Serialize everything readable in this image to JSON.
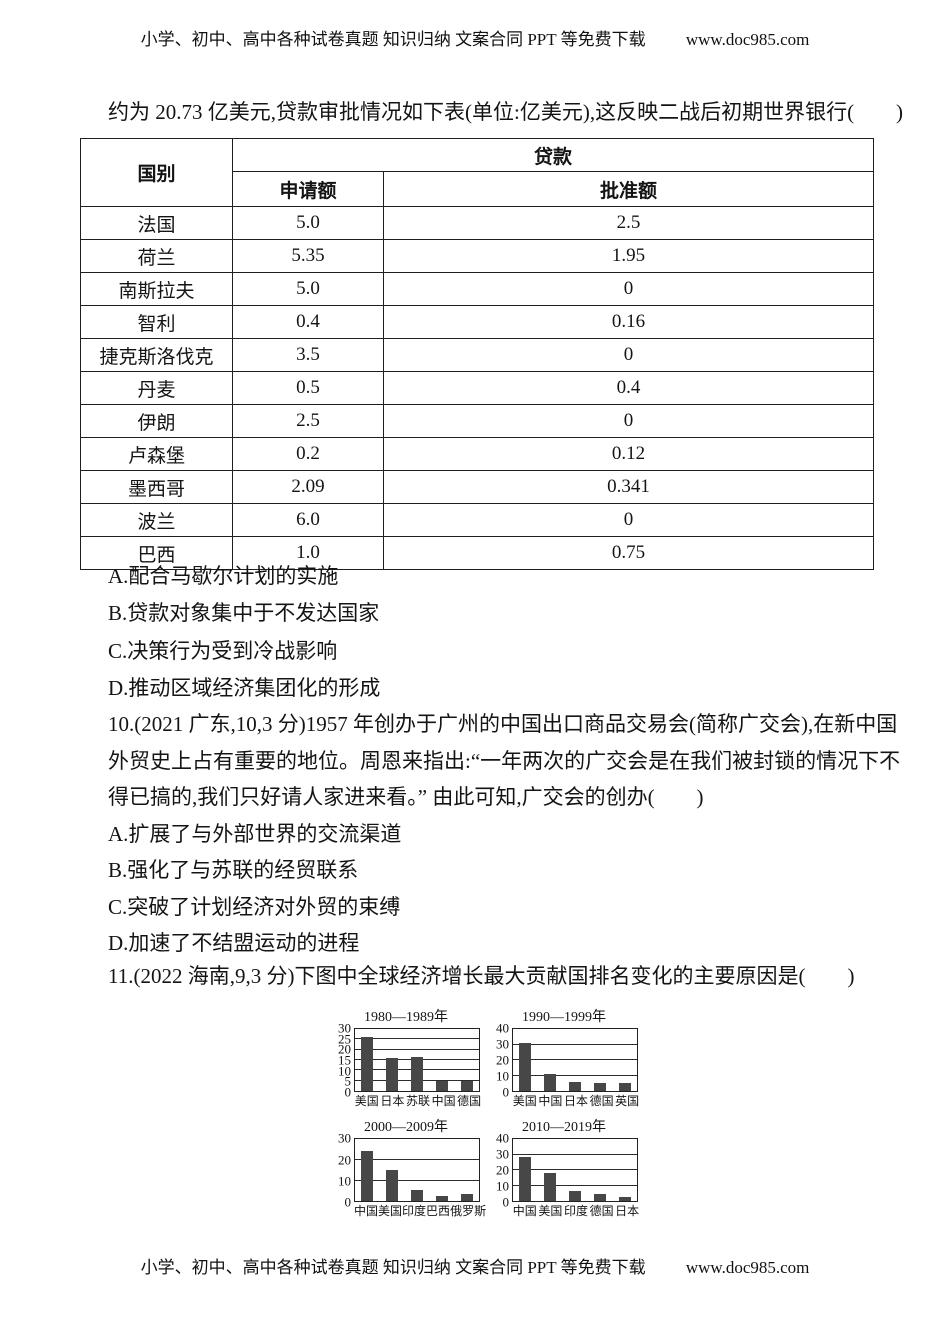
{
  "header": {
    "text": "小学、初中、高中各种试卷真题 知识归纳 文案合同 PPT 等免费下载",
    "url": "www.doc985.com"
  },
  "footer": {
    "text": "小学、初中、高中各种试卷真题 知识归纳 文案合同 PPT 等免费下载",
    "url": "www.doc985.com"
  },
  "intro": "约为 20.73 亿美元,贷款审批情况如下表(单位:亿美元),这反映二战后初期世界银行(　　)",
  "loan_table": {
    "country_header": "国别",
    "loan_header": "贷款",
    "applied_header": "申请额",
    "approved_header": "批准额",
    "rows": [
      {
        "country": "法国",
        "applied": "5.0",
        "approved": "2.5"
      },
      {
        "country": "荷兰",
        "applied": "5.35",
        "approved": "1.95"
      },
      {
        "country": "南斯拉夫",
        "applied": "5.0",
        "approved": "0"
      },
      {
        "country": "智利",
        "applied": "0.4",
        "approved": "0.16"
      },
      {
        "country": "捷克斯洛伐克",
        "applied": "3.5",
        "approved": "0"
      },
      {
        "country": "丹麦",
        "applied": "0.5",
        "approved": "0.4"
      },
      {
        "country": "伊朗",
        "applied": "2.5",
        "approved": "0"
      },
      {
        "country": "卢森堡",
        "applied": "0.2",
        "approved": "0.12"
      },
      {
        "country": "墨西哥",
        "applied": "2.09",
        "approved": "0.341"
      },
      {
        "country": "波兰",
        "applied": "6.0",
        "approved": "0"
      },
      {
        "country": "巴西",
        "applied": "1.0",
        "approved": "0.75"
      }
    ]
  },
  "question9": {
    "options": [
      "A.配合马歇尔计划的实施",
      "B.贷款对象集中于不发达国家",
      "C.决策行为受到冷战影响",
      "D.推动区域经济集团化的形成"
    ]
  },
  "question10": {
    "lines": [
      "10.(2021 广东,10,3 分)1957 年创办于广州的中国出口商品交易会(简称广交会),在新中国",
      "外贸史上占有重要的地位。周恩来指出:“一年两次的广交会是在我们被封锁的情况下不",
      "得已搞的,我们只好请人家进来看。” 由此可知,广交会的创办(　　)"
    ],
    "options": [
      "A.扩展了与外部世界的交流渠道",
      "B.强化了与苏联的经贸联系",
      "C.突破了计划经济对外贸的束缚",
      "D.加速了不结盟运动的进程"
    ]
  },
  "question11": {
    "text": "11.(2022 海南,9,3 分)下图中全球经济增长最大贡献国排名变化的主要原因是(　　)"
  },
  "chart_data": [
    {
      "type": "bar",
      "title": "1980—1989年",
      "categories": [
        "美国",
        "日本",
        "苏联",
        "中国",
        "德国"
      ],
      "values": [
        26,
        16,
        16.5,
        5,
        5
      ],
      "ylim": [
        0,
        30
      ],
      "yticks": [
        0,
        5,
        10,
        15,
        20,
        25,
        30
      ],
      "grid": true,
      "bar_color": "#474747"
    },
    {
      "type": "bar",
      "title": "1990—1999年",
      "categories": [
        "美国",
        "中国",
        "日本",
        "德国",
        "英国"
      ],
      "values": [
        31,
        11,
        5.5,
        5,
        5
      ],
      "ylim": [
        0,
        40
      ],
      "yticks": [
        0,
        10,
        20,
        30,
        40
      ],
      "grid": true,
      "bar_color": "#474747"
    },
    {
      "type": "bar",
      "title": "2000—2009年",
      "categories": [
        "中国",
        "美国",
        "印度",
        "巴西",
        "俄罗斯"
      ],
      "values": [
        24.5,
        15,
        5.5,
        2.5,
        3.5
      ],
      "ylim": [
        0,
        30
      ],
      "yticks": [
        0,
        10,
        20,
        30
      ],
      "grid": true,
      "bar_color": "#474747"
    },
    {
      "type": "bar",
      "title": "2010—2019年",
      "categories": [
        "中国",
        "美国",
        "印度",
        "德国",
        "日本"
      ],
      "values": [
        28.5,
        18.5,
        7,
        5,
        3
      ],
      "ylim": [
        0,
        40
      ],
      "yticks": [
        0,
        10,
        20,
        30,
        40
      ],
      "grid": true,
      "bar_color": "#474747"
    }
  ]
}
